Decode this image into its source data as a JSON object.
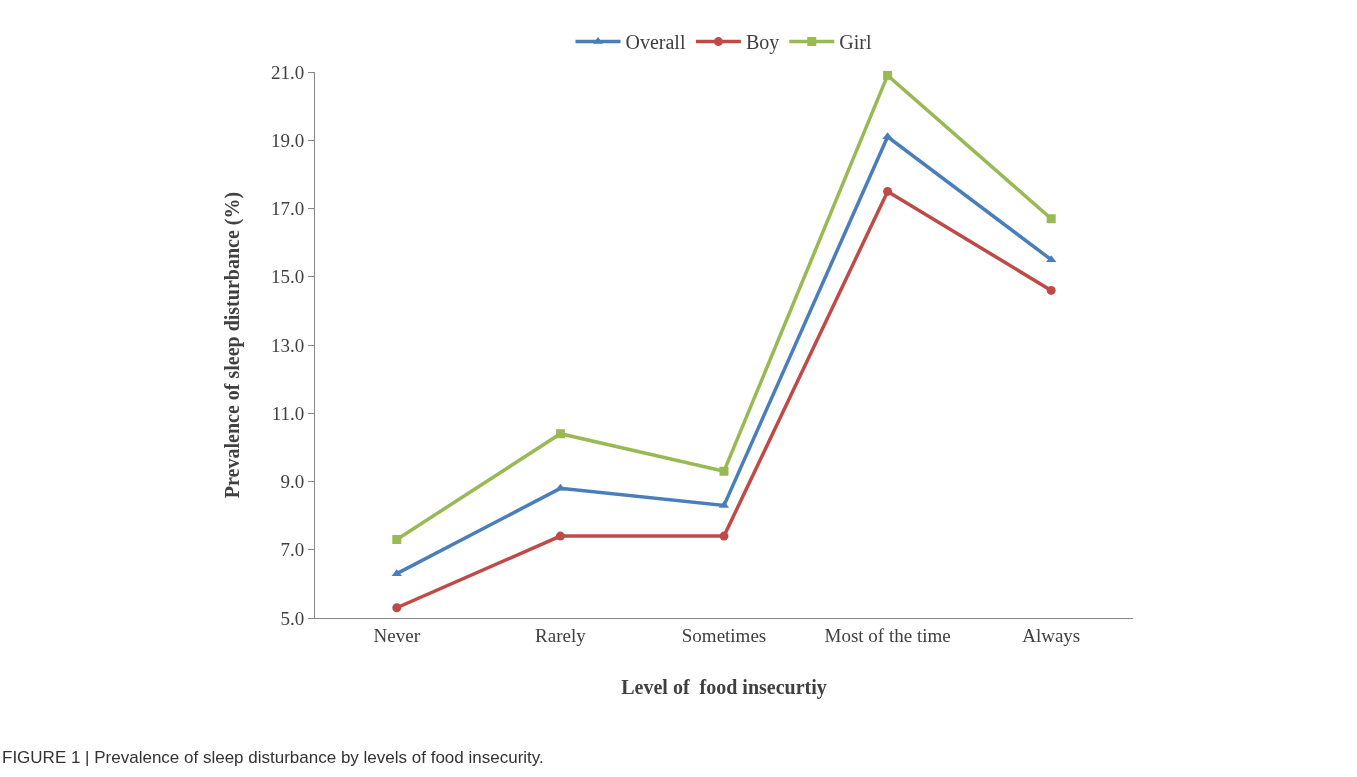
{
  "chart_data": {
    "type": "line",
    "categories": [
      "Never",
      "Rarely",
      "Sometimes",
      "Most of the time",
      "Always"
    ],
    "series": [
      {
        "name": "Overall",
        "color": "#4a7ebb",
        "marker": "triangle",
        "values": [
          6.3,
          8.8,
          8.3,
          19.1,
          15.5
        ]
      },
      {
        "name": "Boy",
        "color": "#be4b48",
        "marker": "circle",
        "values": [
          5.3,
          7.4,
          7.4,
          17.5,
          14.6
        ]
      },
      {
        "name": "Girl",
        "color": "#98b954",
        "marker": "square",
        "values": [
          7.3,
          10.4,
          9.3,
          20.9,
          16.7
        ]
      }
    ],
    "xlabel": "Level of  food insecurtiy",
    "ylabel": "Prevalence of sleep disturbance (%)",
    "ylim": [
      5,
      21
    ],
    "yticks": [
      {
        "value": 5,
        "label": "5.0"
      },
      {
        "value": 7,
        "label": "7.0"
      },
      {
        "value": 9,
        "label": "9.0"
      },
      {
        "value": 11,
        "label": "11.0"
      },
      {
        "value": 13,
        "label": "13.0"
      },
      {
        "value": 15,
        "label": "15.0"
      },
      {
        "value": 17,
        "label": "17.0"
      },
      {
        "value": 19,
        "label": "19.0"
      },
      {
        "value": 21,
        "label": "21.0"
      }
    ],
    "annotations": [
      "FIGURE 1 | Prevalence of sleep disturbance by levels of food insecurity."
    ],
    "legend": "top",
    "line_style": "solid"
  }
}
